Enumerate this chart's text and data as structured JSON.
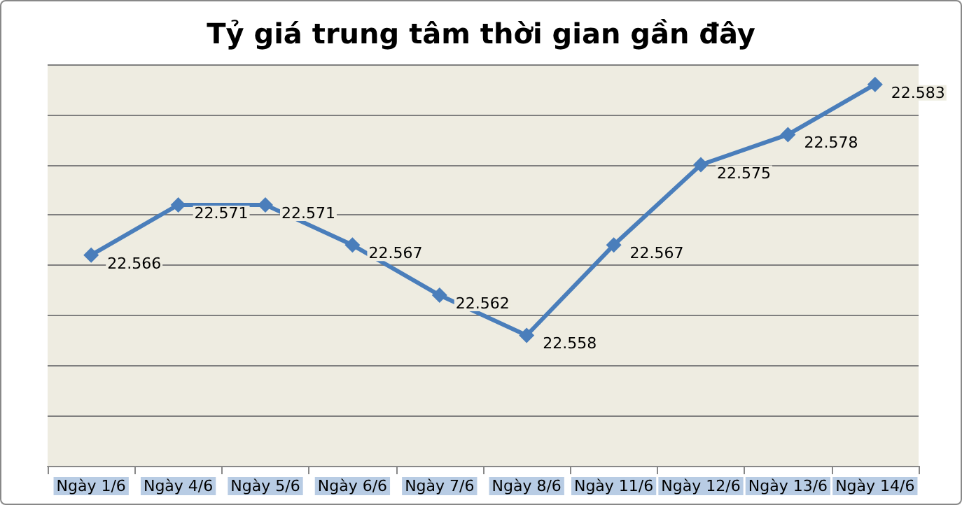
{
  "chart_data": {
    "type": "line",
    "title": "Tỷ giá trung tâm thời gian gần đây",
    "categories": [
      "Ngày 1/6",
      "Ngày 4/6",
      "Ngày 5/6",
      "Ngày 6/6",
      "Ngày 7/6",
      "Ngày 8/6",
      "Ngày 11/6",
      "Ngày 12/6",
      "Ngày 13/6",
      "Ngày 14/6"
    ],
    "series": [
      {
        "color": "#4a7ebb",
        "values": [
          22.566,
          22.571,
          22.571,
          22.567,
          22.562,
          22.558,
          22.567,
          22.575,
          22.578,
          22.583
        ]
      }
    ],
    "ylim": [
      22.545,
      22.585
    ],
    "yticks": [
      {
        "value": 22.545,
        "label": null
      },
      {
        "value": 22.55,
        "label": null
      },
      {
        "value": 22.555,
        "label": null
      },
      {
        "value": 22.56,
        "label": null
      },
      {
        "value": 22.565,
        "label": null
      },
      {
        "value": 22.57,
        "label": null
      },
      {
        "value": 22.575,
        "label": null
      },
      {
        "value": 22.58,
        "label": null
      },
      {
        "value": 22.585,
        "label": null
      }
    ],
    "tick_labels": "x",
    "grid": "y",
    "marker": "diamond",
    "line_style": "solid",
    "data_labels": true
  }
}
